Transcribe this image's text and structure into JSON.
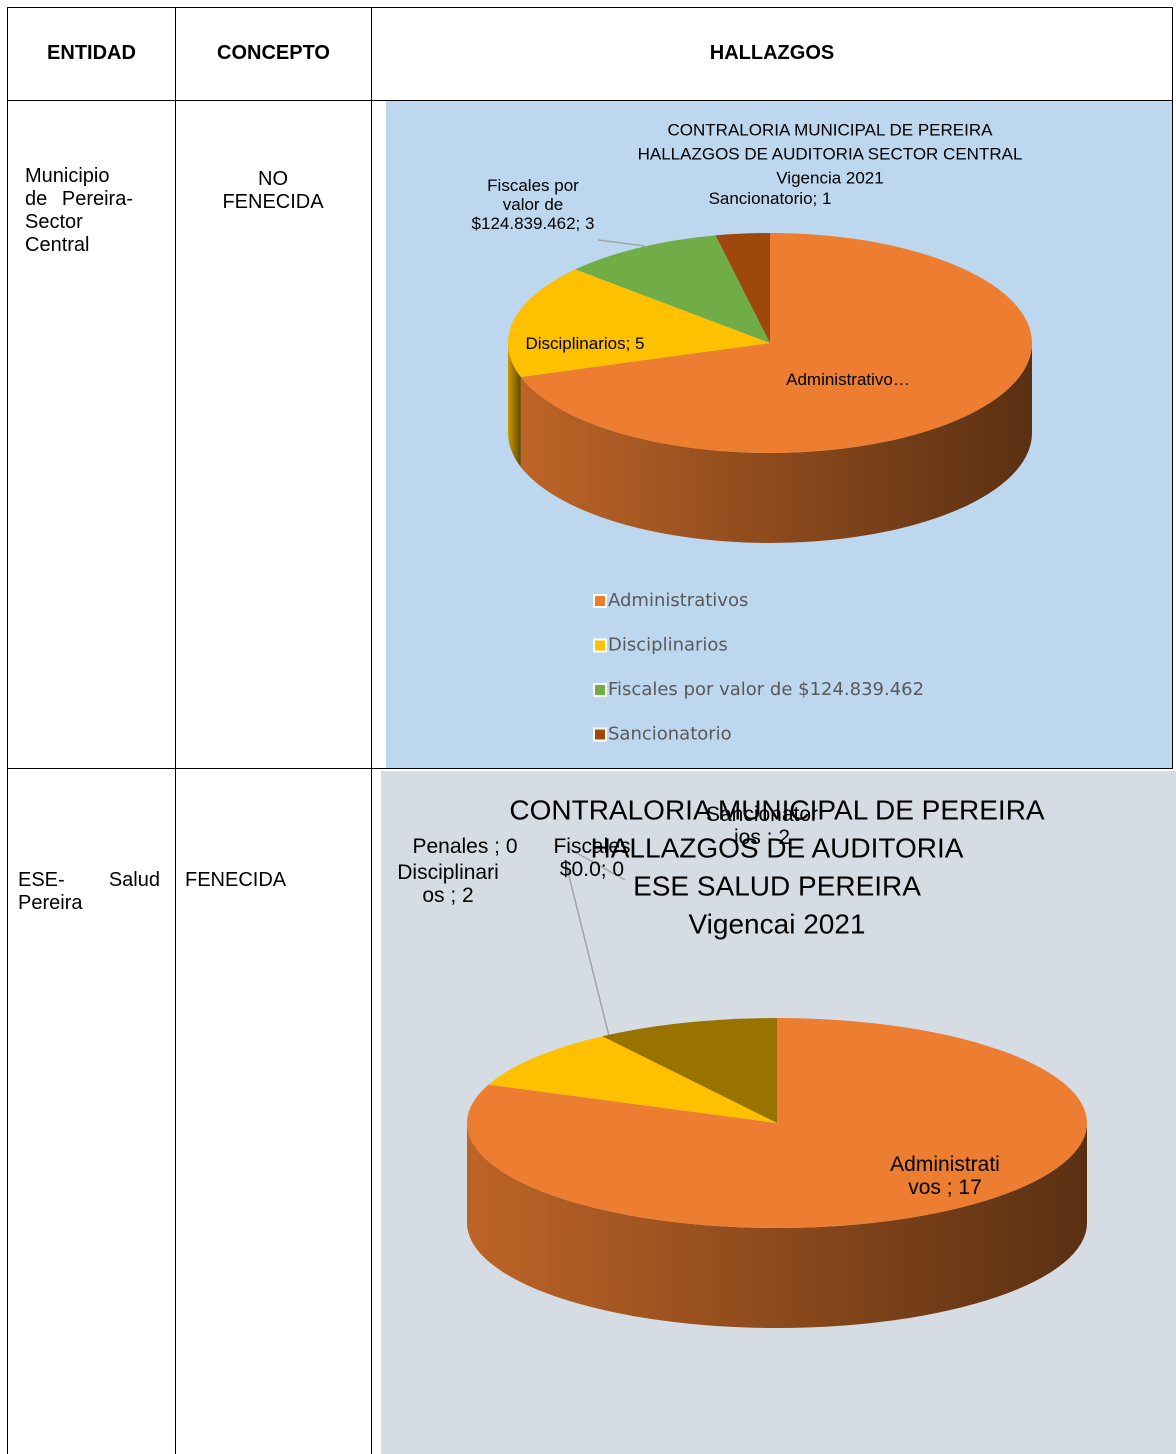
{
  "table": {
    "headers": [
      "ENTIDAD",
      "CONCEPTO",
      "HALLAZGOS"
    ],
    "rows": [
      {
        "entidad": "Municipio de Pereira- Sector Central",
        "concepto": "NO FENECIDA",
        "chart": {
          "type": "pie",
          "title": [
            "CONTRALORIA MUNICIPAL DE PEREIRA",
            "HALLAZGOS DE AUDITORIA SECTOR CENTRAL",
            "Vigencia 2021"
          ],
          "categories": [
            "Administrativos",
            "Disciplinarios",
            "Fiscales por valor de $124.839.462",
            "Sancionatorio"
          ],
          "values": [
            21,
            5,
            3,
            1
          ],
          "value_labels": [
            "Administrativo…",
            "Disciplinarios; 5",
            "Fiscales por valor de $124.839.462; 3",
            "Sancionatorio; 1"
          ],
          "colors": [
            "#ed7d31",
            "#ffc000",
            "#70ad47",
            "#9e480e"
          ],
          "legend": true
        }
      },
      {
        "entidad": "ESE- Salud Pereira",
        "concepto": "FENECIDA",
        "chart": {
          "type": "pie",
          "title": [
            "CONTRALORIA MUNICIPAL DE PEREIRA",
            "HALLAZGOS DE AUDITORIA",
            "ESE SALUD PEREIRA",
            "Vigencai 2021"
          ],
          "categories": [
            "Administrativos",
            "Disciplinarios",
            "Penales",
            "Fiscales",
            "Sancionatorios"
          ],
          "values": [
            17,
            2,
            0,
            0,
            2
          ],
          "value_labels": [
            "Administrati vos ; 17",
            "Disciplinari os ; 2",
            "Penales ; 0",
            "Fiscales $0.0; 0",
            "Sancionator ios ; 2"
          ],
          "colors": [
            "#ed7d31",
            "#ffc000",
            "#a5a5a5",
            "#4472c4",
            "#997300"
          ],
          "legend": false
        }
      }
    ]
  }
}
